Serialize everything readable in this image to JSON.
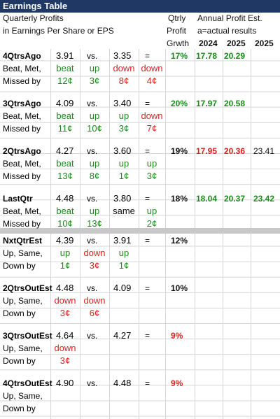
{
  "title": "Earnings Table",
  "header": {
    "line1": "Quarterly Profits",
    "line2": "in Earnings Per Share or EPS",
    "qtrly": "Qtrly",
    "profit": "Profit",
    "grwth": "Grwth",
    "annual": "Annual Profit Est.",
    "actual": "a=actual results",
    "years": [
      "2024",
      "2025",
      "2025"
    ]
  },
  "labels": {
    "beat": "Beat, Met,",
    "missed": "Missed by",
    "upsame": "Up, Same,",
    "downby": "Down by"
  },
  "rows": [
    {
      "name": "4QtrsAgo",
      "v1": "3.91",
      "vs": "vs.",
      "v2": "3.35",
      "eq": "=",
      "growth": "17%",
      "growth_color": "green",
      "w1": "beat",
      "w1c": "green",
      "w2": "up",
      "w2c": "green",
      "w3": "down",
      "w3c": "red",
      "w4": "down",
      "w4c": "red",
      "m1": "12¢",
      "m1c": "green",
      "m2": "3¢",
      "m2c": "green",
      "m3": "8¢",
      "m3c": "red",
      "m4": "4¢",
      "m4c": "red",
      "e1": "17.78",
      "e1c": "green",
      "e2": "20.29",
      "e2c": "green",
      "e3": "",
      "e3c": "black"
    },
    {
      "name": "3QtrsAgo",
      "v1": "4.09",
      "vs": "vs.",
      "v2": "3.40",
      "eq": "=",
      "growth": "20%",
      "growth_color": "green",
      "w1": "beat",
      "w1c": "green",
      "w2": "up",
      "w2c": "green",
      "w3": "up",
      "w3c": "green",
      "w4": "down",
      "w4c": "red",
      "m1": "11¢",
      "m1c": "green",
      "m2": "10¢",
      "m2c": "green",
      "m3": "3¢",
      "m3c": "green",
      "m4": "7¢",
      "m4c": "red",
      "e1": "17.97",
      "e1c": "green",
      "e2": "20.58",
      "e2c": "green",
      "e3": "",
      "e3c": "black"
    },
    {
      "name": "2QtrsAgo",
      "v1": "4.27",
      "vs": "vs.",
      "v2": "3.60",
      "eq": "=",
      "growth": "19%",
      "growth_color": "black",
      "w1": "beat",
      "w1c": "green",
      "w2": "up",
      "w2c": "green",
      "w3": "up",
      "w3c": "green",
      "w4": "up",
      "w4c": "green",
      "m1": "13¢",
      "m1c": "green",
      "m2": "8¢",
      "m2c": "green",
      "m3": "1¢",
      "m3c": "green",
      "m4": "3¢",
      "m4c": "green",
      "e1": "17.95",
      "e1c": "red",
      "e2": "20.36",
      "e2c": "red",
      "e3": "23.41",
      "e3c": "black"
    },
    {
      "name": "LastQtr",
      "v1": "4.48",
      "vs": "vs.",
      "v2": "3.80",
      "eq": "=",
      "growth": "18%",
      "growth_color": "black",
      "w1": "beat",
      "w1c": "green",
      "w2": "up",
      "w2c": "green",
      "w3": "same",
      "w3c": "black",
      "w4": "up",
      "w4c": "green",
      "m1": "10¢",
      "m1c": "green",
      "m2": "13¢",
      "m2c": "green",
      "m3": "",
      "m3c": "black",
      "m4": "2¢",
      "m4c": "green",
      "e1": "18.04",
      "e1c": "green",
      "e2": "20.37",
      "e2c": "green",
      "e3": "23.42",
      "e3c": "green"
    },
    {
      "name": "NxtQtrEst",
      "v1": "4.39",
      "vs": "vs.",
      "v2": "3.91",
      "eq": "=",
      "growth": "12%",
      "growth_color": "black",
      "w1": "up",
      "w1c": "green",
      "w2": "down",
      "w2c": "red",
      "w3": "up",
      "w3c": "green",
      "m1": "1¢",
      "m1c": "green",
      "m2": "3¢",
      "m2c": "red",
      "m3": "1¢",
      "m3c": "green"
    },
    {
      "name": "2QtrsOutEst",
      "v1": "4.48",
      "vs": "vs.",
      "v2": "4.09",
      "eq": "=",
      "growth": "10%",
      "growth_color": "black",
      "w1": "down",
      "w1c": "red",
      "w2": "down",
      "w2c": "red",
      "m1": "3¢",
      "m1c": "red",
      "m2": "6¢",
      "m2c": "red"
    },
    {
      "name": "3QtrsOutEst",
      "v1": "4.64",
      "vs": "vs.",
      "v2": "4.27",
      "eq": "=",
      "growth": "9%",
      "growth_color": "red",
      "w1": "down",
      "w1c": "red",
      "m1": "3¢",
      "m1c": "red"
    },
    {
      "name": "4QtrsOutEst",
      "v1": "4.90",
      "vs": "vs.",
      "v2": "4.48",
      "eq": "=",
      "growth": "9%",
      "growth_color": "red"
    }
  ]
}
